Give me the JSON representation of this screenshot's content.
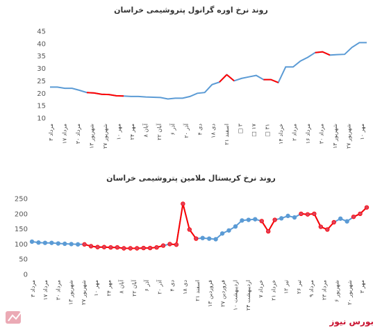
{
  "colors": {
    "series_line": "#5b9bd5",
    "highlight_line": "#ff0000",
    "marker_fill": "#5b9bd5",
    "marker_highlight": "#e0405a",
    "axis_text": "#555555",
    "brand": "#c8102e"
  },
  "watermark": {
    "text": "بورس نیوز"
  },
  "icons": {
    "logo": "bourse-news-logo-icon"
  },
  "chart_data": [
    {
      "type": "line",
      "title": "روند نرخ اوره گرانول پتروشیمی خراسان",
      "xlabel": "",
      "ylabel": "",
      "ylim": [
        10,
        45
      ],
      "yticks": [
        10,
        15,
        20,
        25,
        30,
        35,
        40,
        45
      ],
      "grid": false,
      "legend": "none",
      "x_tick_labels": [
        "۳ مرداد",
        "۱۷ مرداد",
        "۳۰ مرداد",
        "۱۳ شهریور",
        "۲۷ شهریور",
        "۱۰ مهر",
        "۲۴ مهر",
        "۸ آبان",
        "۲۲ آبان",
        "۶ آذر",
        "۲۰ آذر",
        "۴ دی",
        "۱۸ دی",
        "۲۱ اسفند",
        "□ ۳",
        "□ ۱۷",
        "□ ۳۱",
        "۱۴ خرداد",
        "۲ مرداد",
        "۱۶ مرداد",
        "۳۰ مرداد",
        "۱۳ شهریور",
        "۲۷ شهریور",
        "۱۰ مهر"
      ],
      "series": [
        {
          "values": [
            22.5,
            22.5,
            22,
            22,
            21.2,
            20.3,
            20.1,
            19.6,
            19.5,
            19,
            18.9,
            18.7,
            18.7,
            18.5,
            18.4,
            18.3,
            17.7,
            18,
            18,
            18.7,
            20,
            20.3,
            23.5,
            24.5,
            27.5,
            25,
            26,
            26.6,
            27.2,
            25.5,
            25.5,
            24.3,
            30.6,
            30.6,
            33,
            34.5,
            36.4,
            36.7,
            35.4,
            35.6,
            35.7,
            38.5,
            40.4,
            40.4
          ],
          "highlight_segments": [
            [
              5,
              10
            ],
            [
              23,
              24
            ],
            [
              24,
              25
            ],
            [
              29,
              31
            ],
            [
              36,
              38
            ]
          ]
        }
      ]
    },
    {
      "type": "line",
      "title": "روند نرخ کریستال ملامین پتروشیمی خراسان",
      "xlabel": "",
      "ylabel": "",
      "ylim": [
        0,
        250
      ],
      "yticks": [
        0,
        50,
        100,
        150,
        200,
        250
      ],
      "grid": false,
      "legend": "none",
      "x_tick_labels": [
        "۳ مرداد",
        "۱۷ مرداد",
        "۳۰ مرداد",
        "۱۳ شهریور",
        "۲۷ شهریور",
        "۱۰ مهر",
        "۲۴ مهر",
        "۸ آبان",
        "۲۲ آبان",
        "۶ آذر",
        "۲۰ آذر",
        "۴ دی",
        "۱۸ دی",
        "۲۱ اسفند",
        "۱۳ فروردین",
        "۲۷ فروردین",
        "۱۰ اردیبهشت",
        "۲۴ اردیبهشت",
        "۷ خرداد",
        "۲۱ خرداد",
        "۱۲ تیر",
        "۲۶ تیر",
        "۹ مرداد",
        "۲۳ مرداد",
        "۶ شهریور",
        "۲۰ شهریور",
        "۳ مهر"
      ],
      "series": [
        {
          "values": [
            108,
            105,
            104,
            104,
            102,
            101,
            100,
            99,
            99,
            93,
            90,
            90,
            89,
            89,
            86,
            86,
            86,
            87,
            87,
            89,
            95,
            100,
            98,
            233,
            148,
            118,
            120,
            118,
            116,
            135,
            145,
            158,
            178,
            180,
            182,
            176,
            142,
            180,
            185,
            193,
            188,
            200,
            198,
            200,
            157,
            148,
            172,
            184,
            175,
            190,
            200,
            221
          ],
          "highlight_segments": [
            [
              8,
              20
            ],
            [
              21,
              22
            ],
            [
              22,
              23
            ],
            [
              23,
              25
            ],
            [
              35,
              37
            ],
            [
              41,
              46
            ],
            [
              49,
              51
            ]
          ]
        }
      ]
    }
  ]
}
